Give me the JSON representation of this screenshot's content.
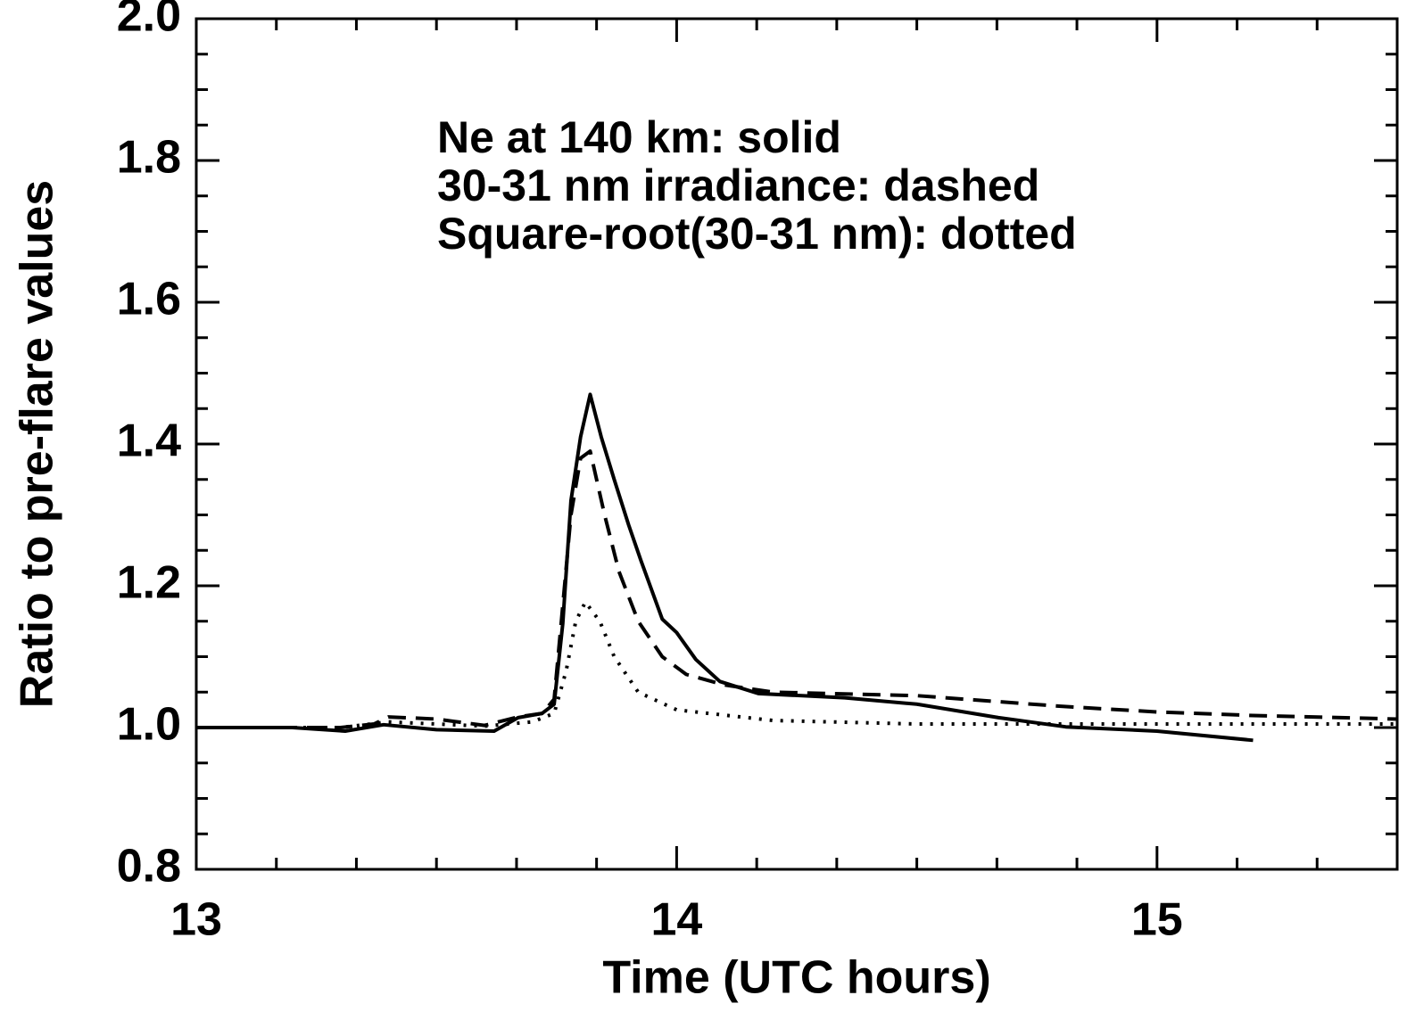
{
  "chart_data": {
    "type": "line",
    "legend_lines": [
      "Ne at 140 km: solid",
      "30-31 nm irradiance: dashed",
      "Square-root(30-31 nm): dotted"
    ],
    "xlabel": "Time (UTC hours)",
    "ylabel": "Ratio to pre-flare values",
    "xlim": [
      13,
      15.5
    ],
    "ylim": [
      0.8,
      2.0
    ],
    "xticks": [
      13,
      14,
      15
    ],
    "xminorticks": [
      13.1667,
      13.3333,
      13.5,
      13.6667,
      13.8333,
      14.1667,
      14.3333,
      14.5,
      14.6667,
      14.8333,
      15.1667,
      15.3333
    ],
    "yticks": [
      0.8,
      {
        "value": 1.0,
        "label": "1.0"
      },
      1.2,
      1.4,
      1.6,
      1.8,
      {
        "value": 2.0,
        "label": "2.0"
      }
    ],
    "yminorticks": [
      0.85,
      0.9,
      0.95,
      1.05,
      1.1,
      1.15,
      1.25,
      1.3,
      1.35,
      1.45,
      1.5,
      1.55,
      1.65,
      1.7,
      1.75,
      1.85,
      1.9,
      1.95
    ],
    "series": [
      {
        "name": "Ne at 140 km",
        "color": "#000000",
        "line_style": "solid",
        "x": [
          13.0,
          13.2,
          13.31,
          13.39,
          13.5,
          13.62,
          13.67,
          13.72,
          13.745,
          13.763,
          13.78,
          13.8,
          13.82,
          13.843,
          13.87,
          13.9,
          13.926,
          13.97,
          14.0,
          14.04,
          14.09,
          14.17,
          14.35,
          14.5,
          14.67,
          14.81,
          15.0,
          15.2
        ],
        "values": [
          1.0,
          1.0,
          0.995,
          1.004,
          0.997,
          0.995,
          1.014,
          1.02,
          1.033,
          1.147,
          1.32,
          1.41,
          1.47,
          1.41,
          1.35,
          1.286,
          1.235,
          1.153,
          1.134,
          1.096,
          1.065,
          1.048,
          1.042,
          1.033,
          1.014,
          1.001,
          0.995,
          0.982
        ]
      },
      {
        "name": "30-31 nm irradiance",
        "color": "#000000",
        "line_style": "dashed",
        "x": [
          13.0,
          13.3,
          13.37,
          13.4,
          13.5,
          13.6,
          13.67,
          13.72,
          13.745,
          13.76,
          13.78,
          13.8,
          13.82,
          13.85,
          13.88,
          13.92,
          13.97,
          14.02,
          14.1,
          14.2,
          14.5,
          14.8,
          15.0,
          15.2,
          15.5
        ],
        "values": [
          1.0,
          1.0,
          1.005,
          1.015,
          1.012,
          1.003,
          1.015,
          1.02,
          1.04,
          1.15,
          1.3,
          1.38,
          1.39,
          1.3,
          1.22,
          1.15,
          1.1,
          1.075,
          1.06,
          1.05,
          1.045,
          1.03,
          1.022,
          1.017,
          1.012
        ]
      },
      {
        "name": "Square-root(30-31 nm)",
        "color": "#000000",
        "line_style": "dotted",
        "x": [
          13.0,
          13.3,
          13.4,
          13.6,
          13.7,
          13.745,
          13.77,
          13.79,
          13.81,
          13.84,
          13.87,
          13.92,
          14.0,
          14.2,
          14.5,
          15.0,
          15.5
        ],
        "values": [
          1.0,
          1.0,
          1.008,
          1.002,
          1.008,
          1.02,
          1.08,
          1.15,
          1.177,
          1.15,
          1.1,
          1.05,
          1.025,
          1.01,
          1.005,
          1.005,
          1.005
        ]
      }
    ]
  }
}
